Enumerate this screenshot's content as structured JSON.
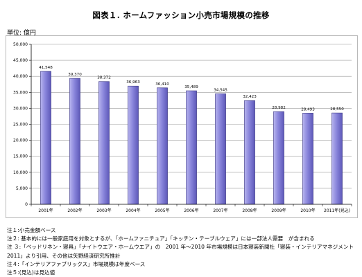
{
  "title": "図表１. ホームファッション小売市場規模の推移",
  "unit_label": "単位: 億円",
  "chart_data": {
    "type": "bar",
    "categories": [
      "2001年",
      "2002年",
      "2003年",
      "2004年",
      "2005年",
      "2006年",
      "2007年",
      "2008年",
      "2009年",
      "2010年",
      "2011年(見込)"
    ],
    "values": [
      41548,
      39370,
      38372,
      36963,
      36410,
      35489,
      34545,
      32423,
      28982,
      28493,
      28550
    ],
    "value_labels": [
      "41,548",
      "39,370",
      "38,372",
      "36,963",
      "36,410",
      "35,489",
      "34,545",
      "32,423",
      "28,982",
      "28,493",
      "28,550"
    ],
    "ylim": [
      0,
      50000
    ],
    "yticks": [
      0,
      5000,
      10000,
      15000,
      20000,
      25000,
      30000,
      35000,
      40000,
      45000,
      50000
    ],
    "ytick_labels": [
      "0",
      "5,000",
      "10,000",
      "15,000",
      "20,000",
      "25,000",
      "30,000",
      "35,000",
      "40,000",
      "45,000",
      "50,000"
    ],
    "grid": true,
    "bar_color": "#8a86dc",
    "bar_edge_color": "#3a3680"
  },
  "notes": [
    "注１:小売金額ベース",
    "注２: 基本的には一般家庭用を対象とするが、「ホームファニチュア」「キッチン・テーブルウェア」には一部法人需要　が含まれる",
    "注 ３:「ベッドリネン・寝具」「ナイトウエア・ホームウエア」の　2001 年〜2010 年市場規模は日本寝装新聞社「寝装・インテリアマネジメント",
    "2011」より引用、その他は矢野経済研究所推計",
    "注４:「インテリアファブリックス」市場規模は年度ベース",
    "注５:(見込)は見込値"
  ]
}
